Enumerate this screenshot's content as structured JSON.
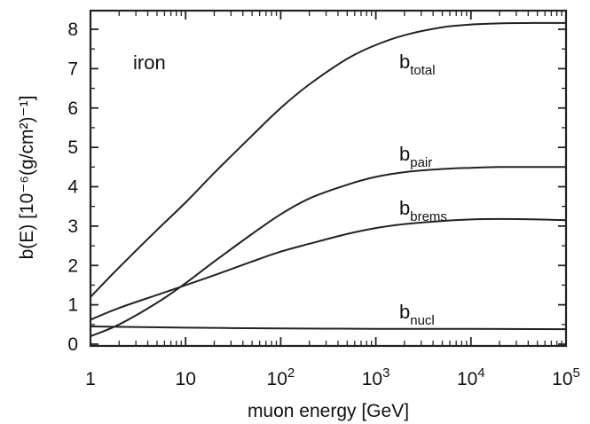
{
  "chart_data": {
    "type": "line",
    "xlabel": "muon energy [GeV]",
    "ylabel": "b(E) [10⁻⁶(g/cm²)⁻¹]",
    "x_scale": "log",
    "xlim": [
      1,
      100000
    ],
    "ylim": [
      0,
      8.5
    ],
    "x_tick_labels": [
      {
        "value": 1,
        "base": "1",
        "exp": ""
      },
      {
        "value": 10,
        "base": "10",
        "exp": ""
      },
      {
        "value": 100,
        "base": "10",
        "exp": "2"
      },
      {
        "value": 1000,
        "base": "10",
        "exp": "3"
      },
      {
        "value": 10000,
        "base": "10",
        "exp": "4"
      },
      {
        "value": 100000,
        "base": "10",
        "exp": "5"
      }
    ],
    "y_ticks": [
      0,
      1,
      2,
      3,
      4,
      5,
      6,
      7,
      8
    ],
    "annotation": "iron",
    "series": [
      {
        "name": "total",
        "label": {
          "base": "b",
          "sub": "total"
        },
        "x": [
          1,
          2,
          5,
          10,
          20,
          50,
          100,
          200,
          500,
          1000,
          2000,
          5000,
          10000,
          20000,
          50000,
          100000
        ],
        "y": [
          1.2,
          1.95,
          2.9,
          3.6,
          4.35,
          5.3,
          6.0,
          6.6,
          7.25,
          7.6,
          7.85,
          8.05,
          8.12,
          8.15,
          8.16,
          8.16
        ]
      },
      {
        "name": "pair",
        "label": {
          "base": "b",
          "sub": "pair"
        },
        "x": [
          1,
          2,
          5,
          10,
          20,
          50,
          100,
          200,
          500,
          1000,
          2000,
          5000,
          10000,
          20000,
          50000,
          100000
        ],
        "y": [
          0.2,
          0.5,
          1.05,
          1.55,
          2.1,
          2.8,
          3.3,
          3.7,
          4.05,
          4.25,
          4.37,
          4.45,
          4.48,
          4.5,
          4.5,
          4.5
        ]
      },
      {
        "name": "brems",
        "label": {
          "base": "b",
          "sub": "brems"
        },
        "x": [
          1,
          2,
          5,
          10,
          20,
          50,
          100,
          200,
          500,
          1000,
          2000,
          5000,
          10000,
          20000,
          50000,
          100000
        ],
        "y": [
          0.62,
          0.92,
          1.25,
          1.5,
          1.75,
          2.1,
          2.35,
          2.55,
          2.8,
          2.95,
          3.05,
          3.13,
          3.17,
          3.18,
          3.17,
          3.15
        ]
      },
      {
        "name": "nucl",
        "label": {
          "base": "b",
          "sub": "nucl"
        },
        "x": [
          1,
          10,
          100,
          1000,
          10000,
          100000
        ],
        "y": [
          0.45,
          0.42,
          0.4,
          0.39,
          0.39,
          0.38
        ]
      }
    ]
  }
}
